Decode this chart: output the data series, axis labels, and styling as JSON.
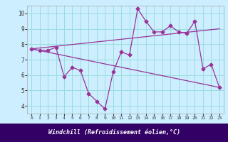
{
  "x": [
    0,
    1,
    2,
    3,
    4,
    5,
    6,
    7,
    8,
    9,
    10,
    11,
    12,
    13,
    14,
    15,
    16,
    17,
    18,
    19,
    20,
    21,
    22,
    23
  ],
  "y_data": [
    7.7,
    7.6,
    7.6,
    7.8,
    5.9,
    6.5,
    6.3,
    4.8,
    4.3,
    3.8,
    6.2,
    7.5,
    7.3,
    10.3,
    9.5,
    8.8,
    8.8,
    9.2,
    8.8,
    8.7,
    9.5,
    6.4,
    6.7,
    5.2
  ],
  "trend1_x": [
    0,
    23
  ],
  "trend1_y": [
    7.7,
    9.0
  ],
  "trend2_x": [
    0,
    23
  ],
  "trend2_y": [
    7.7,
    5.2
  ],
  "line_color": "#993399",
  "bg_color": "#cceeff",
  "grid_color": "#99dddd",
  "label_bg_color": "#330066",
  "label_text_color": "#ffffff",
  "xlabel": "Windchill (Refroidissement éolien,°C)",
  "xlim": [
    -0.5,
    23.5
  ],
  "ylim": [
    3.5,
    10.5
  ],
  "yticks": [
    4,
    5,
    6,
    7,
    8,
    9,
    10
  ],
  "xticks": [
    0,
    1,
    2,
    3,
    4,
    5,
    6,
    7,
    8,
    9,
    10,
    11,
    12,
    13,
    14,
    15,
    16,
    17,
    18,
    19,
    20,
    21,
    22,
    23
  ]
}
